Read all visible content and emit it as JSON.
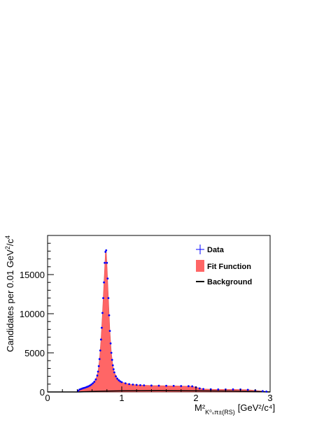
{
  "chart_data": {
    "type": "line",
    "xlabel": "M²",
    "xlabel_subscript": "K⁰ₛπ±(RS)",
    "xlabel_units": "[GeV²/c⁴]",
    "ylabel": "Candidates per 0.01 GeV²/c⁴",
    "xlim": [
      0,
      3
    ],
    "ylim": [
      0,
      20000
    ],
    "x_ticks": [
      0,
      1,
      2,
      3
    ],
    "y_ticks": [
      0,
      5000,
      10000,
      15000
    ],
    "grid": false,
    "legend_position": "top-right",
    "colors": {
      "data": "#0000ff",
      "fit": "#ff6666",
      "background": "#000000"
    },
    "legend": [
      "Data",
      "Fit Function",
      "Background"
    ],
    "series": [
      {
        "name": "Data",
        "points": [
          [
            0.41,
            150
          ],
          [
            0.43,
            300
          ],
          [
            0.45,
            380
          ],
          [
            0.47,
            450
          ],
          [
            0.49,
            510
          ],
          [
            0.51,
            570
          ],
          [
            0.53,
            640
          ],
          [
            0.55,
            720
          ],
          [
            0.57,
            820
          ],
          [
            0.59,
            950
          ],
          [
            0.61,
            1100
          ],
          [
            0.63,
            1300
          ],
          [
            0.65,
            1600
          ],
          [
            0.67,
            2100
          ],
          [
            0.68,
            2600
          ],
          [
            0.69,
            3300
          ],
          [
            0.7,
            4200
          ],
          [
            0.71,
            5300
          ],
          [
            0.72,
            6700
          ],
          [
            0.73,
            8200
          ],
          [
            0.74,
            10100
          ],
          [
            0.75,
            12000
          ],
          [
            0.76,
            14000
          ],
          [
            0.77,
            16500
          ],
          [
            0.78,
            17900
          ],
          [
            0.79,
            18100
          ],
          [
            0.8,
            16500
          ],
          [
            0.81,
            14500
          ],
          [
            0.82,
            12000
          ],
          [
            0.83,
            9800
          ],
          [
            0.84,
            7800
          ],
          [
            0.85,
            6200
          ],
          [
            0.86,
            5000
          ],
          [
            0.87,
            4100
          ],
          [
            0.88,
            3400
          ],
          [
            0.89,
            2900
          ],
          [
            0.9,
            2500
          ],
          [
            0.92,
            2000
          ],
          [
            0.94,
            1700
          ],
          [
            0.96,
            1500
          ],
          [
            0.98,
            1350
          ],
          [
            1.0,
            1250
          ],
          [
            1.05,
            1100
          ],
          [
            1.1,
            1000
          ],
          [
            1.15,
            950
          ],
          [
            1.2,
            900
          ],
          [
            1.25,
            870
          ],
          [
            1.3,
            850
          ],
          [
            1.4,
            820
          ],
          [
            1.5,
            800
          ],
          [
            1.6,
            790
          ],
          [
            1.7,
            780
          ],
          [
            1.8,
            760
          ],
          [
            1.9,
            740
          ],
          [
            1.95,
            720
          ],
          [
            2.0,
            600
          ],
          [
            2.05,
            450
          ],
          [
            2.1,
            380
          ],
          [
            2.2,
            340
          ],
          [
            2.3,
            320
          ],
          [
            2.4,
            320
          ],
          [
            2.5,
            330
          ],
          [
            2.6,
            320
          ],
          [
            2.7,
            280
          ],
          [
            2.8,
            200
          ],
          [
            2.9,
            110
          ],
          [
            2.95,
            50
          ]
        ]
      },
      {
        "name": "Fit Function",
        "points": [
          [
            0.4,
            0
          ],
          [
            0.41,
            150
          ],
          [
            0.45,
            370
          ],
          [
            0.5,
            540
          ],
          [
            0.55,
            710
          ],
          [
            0.6,
            1000
          ],
          [
            0.65,
            1600
          ],
          [
            0.68,
            2600
          ],
          [
            0.7,
            4200
          ],
          [
            0.72,
            6700
          ],
          [
            0.74,
            10100
          ],
          [
            0.76,
            14000
          ],
          [
            0.78,
            17800
          ],
          [
            0.79,
            18100
          ],
          [
            0.8,
            16400
          ],
          [
            0.82,
            12000
          ],
          [
            0.84,
            7800
          ],
          [
            0.86,
            5000
          ],
          [
            0.88,
            3400
          ],
          [
            0.9,
            2500
          ],
          [
            0.95,
            1600
          ],
          [
            1.0,
            1250
          ],
          [
            1.1,
            1000
          ],
          [
            1.2,
            900
          ],
          [
            1.4,
            820
          ],
          [
            1.6,
            790
          ],
          [
            1.8,
            760
          ],
          [
            1.95,
            720
          ],
          [
            2.0,
            600
          ],
          [
            2.1,
            380
          ],
          [
            2.3,
            320
          ],
          [
            2.5,
            330
          ],
          [
            2.7,
            280
          ],
          [
            2.9,
            110
          ],
          [
            2.98,
            0
          ]
        ]
      },
      {
        "name": "Background",
        "points": [
          [
            0.0,
            0
          ],
          [
            0.4,
            0
          ],
          [
            0.45,
            20
          ],
          [
            0.6,
            60
          ],
          [
            0.8,
            110
          ],
          [
            1.0,
            140
          ],
          [
            1.5,
            160
          ],
          [
            2.0,
            140
          ],
          [
            2.5,
            100
          ],
          [
            2.9,
            30
          ],
          [
            3.0,
            0
          ]
        ]
      }
    ]
  }
}
